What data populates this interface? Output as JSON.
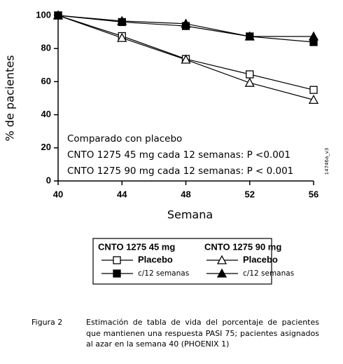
{
  "chart_data": {
    "type": "line",
    "y_label": "% de pacientes",
    "x_label": "Semana",
    "annotations": [
      "Comparado con placebo",
      "CNTO 1275 45 mg cada 12 semanas: P <0.001",
      "CNTO 1275 90 mg cada 12 semanas: P < 0.001"
    ],
    "side_note": "14746a_v3",
    "x": [
      40,
      44,
      48,
      52,
      56
    ],
    "xlim": [
      40,
      56
    ],
    "xticks": [
      40,
      44,
      48,
      52,
      56
    ],
    "ylim": [
      0,
      100
    ],
    "yticks": [
      0,
      20,
      40,
      60,
      80,
      100
    ],
    "legend_groups": [
      "CNTO 1275 45 mg",
      "CNTO 1275 90 mg"
    ],
    "series": [
      {
        "name": "Placebo",
        "color": "#000000",
        "marker": "square",
        "filled": false,
        "values": [
          100,
          87.5,
          73.7,
          64.4,
          55
        ]
      },
      {
        "name": "c/12 semanas",
        "color": "#000000",
        "marker": "square",
        "filled": true,
        "values": [
          100,
          96,
          93.6,
          87.3,
          83.9
        ]
      },
      {
        "name": "Placebo",
        "color": "#000000",
        "marker": "triangle",
        "filled": false,
        "values": [
          100,
          86.4,
          73.3,
          59.3,
          49
        ]
      },
      {
        "name": "c/12 semanas",
        "color": "#000000",
        "marker": "triangle",
        "filled": true,
        "values": [
          100,
          96.6,
          95,
          87.3,
          87.3
        ]
      }
    ]
  },
  "caption": {
    "label": "Figura 2",
    "text": "Estimación de tabla de vida del porcentaje de pacientes que mantienen una respuesta PASI 75; pacientes asignados al azar en la semana 40 (PHOENIX 1)"
  }
}
